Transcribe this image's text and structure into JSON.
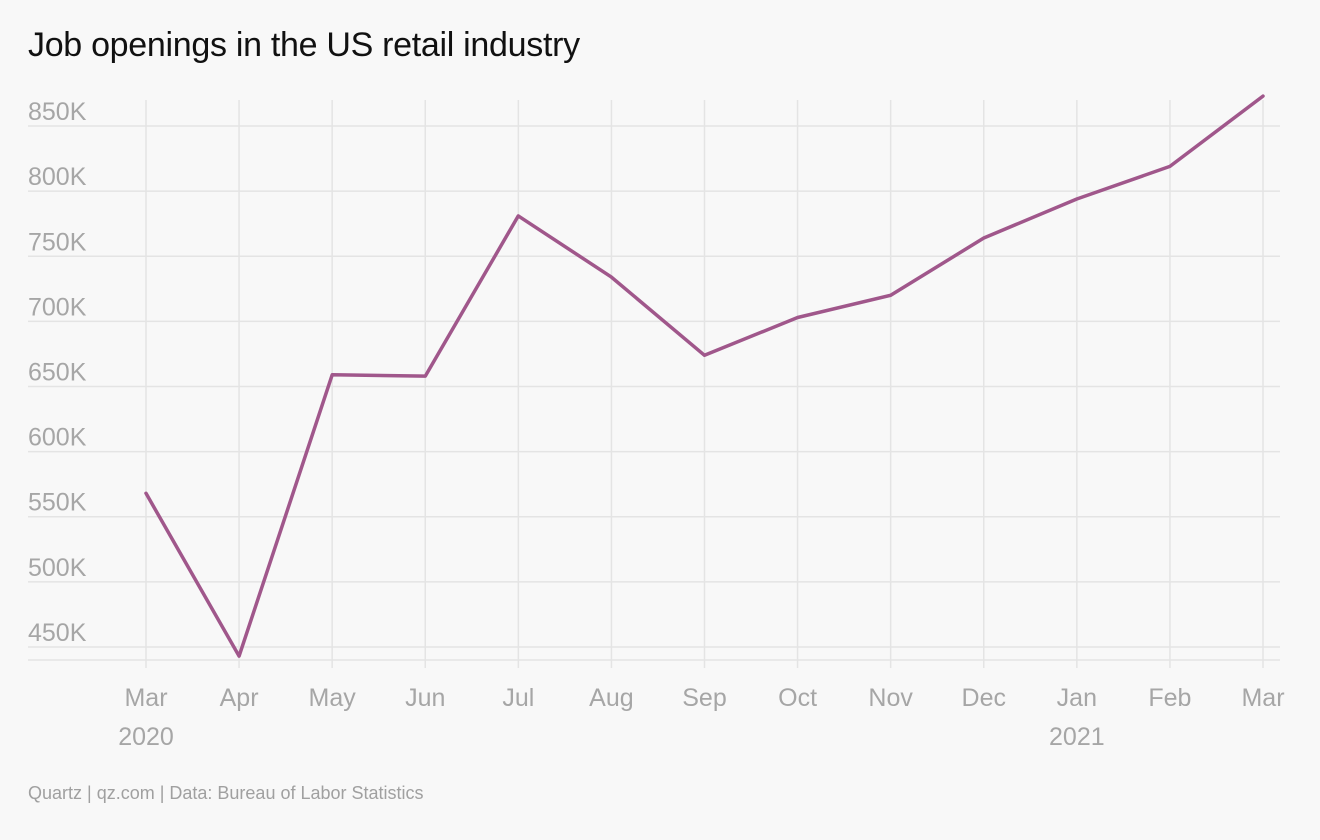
{
  "title": "Job openings in the US retail industry",
  "source": "Quartz | qz.com | Data: Bureau of Labor Statistics",
  "colors": {
    "line": "#a0578b",
    "grid": "#e4e4e4",
    "tick_text": "#a6a6a6",
    "background": "#f8f8f8"
  },
  "chart_data": {
    "type": "line",
    "title": "Job openings in the US retail industry",
    "xlabel": "",
    "ylabel": "",
    "grid": true,
    "legend": "none",
    "ylim": [
      440000,
      870000
    ],
    "yticks": [
      450000,
      500000,
      550000,
      600000,
      650000,
      700000,
      750000,
      800000,
      850000
    ],
    "ytick_labels": [
      "450K",
      "500K",
      "550K",
      "600K",
      "650K",
      "700K",
      "750K",
      "800K",
      "850K"
    ],
    "categories": [
      "Mar",
      "Apr",
      "May",
      "Jun",
      "Jul",
      "Aug",
      "Sep",
      "Oct",
      "Nov",
      "Dec",
      "Jan",
      "Feb",
      "Mar"
    ],
    "category_dates": [
      "2020-03",
      "2020-04",
      "2020-05",
      "2020-06",
      "2020-07",
      "2020-08",
      "2020-09",
      "2020-10",
      "2020-11",
      "2020-12",
      "2021-01",
      "2021-02",
      "2021-03"
    ],
    "year_labels": [
      {
        "index": 0,
        "label": "2020"
      },
      {
        "index": 10,
        "label": "2021"
      }
    ],
    "series": [
      {
        "values": [
          568000,
          443000,
          659000,
          658000,
          781000,
          734000,
          674000,
          703000,
          720000,
          764000,
          794000,
          819000,
          873000
        ]
      }
    ]
  }
}
